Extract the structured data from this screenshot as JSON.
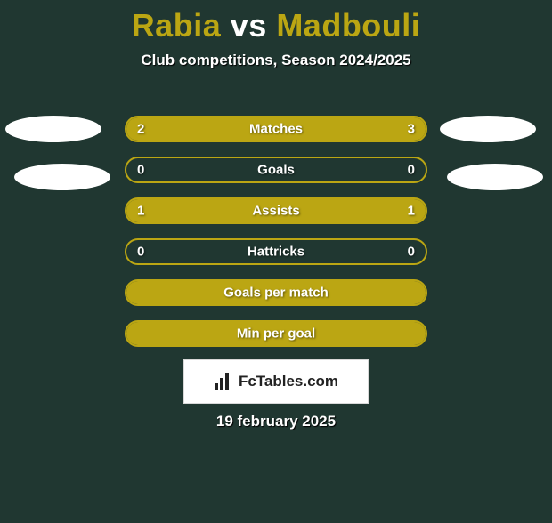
{
  "colors": {
    "background": "#203731",
    "accent": "#bba613",
    "text_white": "#ffffff"
  },
  "title": {
    "player1": "Rabia",
    "vs": "vs",
    "player2": "Madbouli",
    "player1_color": "#bba613",
    "vs_color": "#ffffff",
    "player2_color": "#bba613",
    "fontsize": 36
  },
  "subtitle": "Club competitions, Season 2024/2025",
  "stats": {
    "bar_background": "#203731",
    "bar_border": "#bba613",
    "fill_color": "#bba613",
    "label_fontsize": 15,
    "rows": [
      {
        "label": "Matches",
        "left": "2",
        "right": "3",
        "left_pct": 40,
        "right_pct": 60
      },
      {
        "label": "Goals",
        "left": "0",
        "right": "0",
        "left_pct": 0,
        "right_pct": 0
      },
      {
        "label": "Assists",
        "left": "1",
        "right": "1",
        "left_pct": 50,
        "right_pct": 50
      },
      {
        "label": "Hattricks",
        "left": "0",
        "right": "0",
        "left_pct": 0,
        "right_pct": 0
      },
      {
        "label": "Goals per match",
        "left": "",
        "right": "",
        "left_pct": 100,
        "right_pct": 0
      },
      {
        "label": "Min per goal",
        "left": "",
        "right": "",
        "left_pct": 100,
        "right_pct": 0
      }
    ]
  },
  "badge": {
    "text_fc": "Fc",
    "text_rest": "Tables.com",
    "background": "#ffffff",
    "text_color": "#222222"
  },
  "date": "19 february 2025"
}
